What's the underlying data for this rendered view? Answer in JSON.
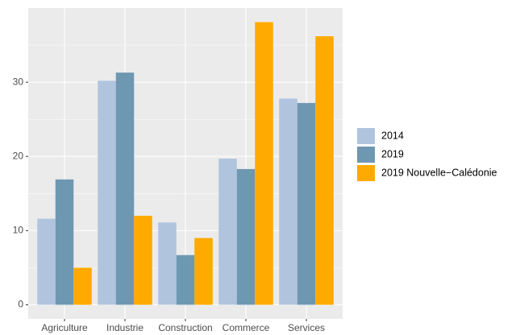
{
  "chart_data": {
    "type": "bar",
    "categories": [
      "Agriculture",
      "Industrie",
      "Construction",
      "Commerce",
      "Services"
    ],
    "series": [
      {
        "name": "2014",
        "color": "#b0c4de",
        "values": [
          11.6,
          30.2,
          11.1,
          19.7,
          27.8
        ]
      },
      {
        "name": "2019",
        "color": "#6e97b2",
        "values": [
          16.9,
          31.3,
          6.7,
          18.3,
          27.2
        ]
      },
      {
        "name": "2019 Nouvelle−Calédonie",
        "color": "#ffaa00",
        "values": [
          5.0,
          12.0,
          9.0,
          38.1,
          36.2
        ]
      }
    ],
    "ylim": [
      -1.9,
      40
    ],
    "yticks": [
      0,
      10,
      20,
      30
    ],
    "grid": true,
    "legend": "right"
  }
}
